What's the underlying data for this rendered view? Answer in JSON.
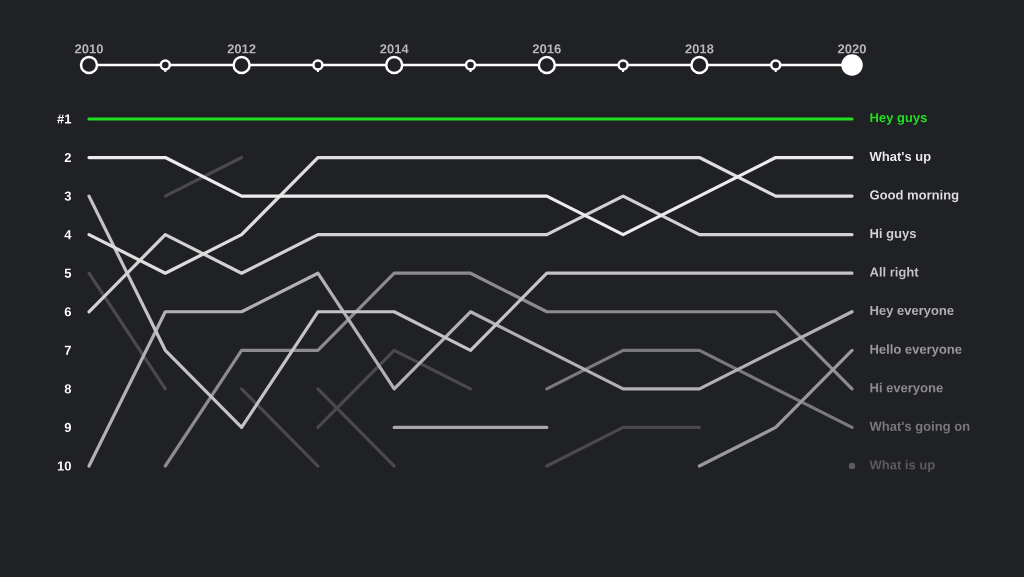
{
  "chart_data": {
    "type": "line",
    "x": [
      2010,
      2011,
      2012,
      2013,
      2014,
      2015,
      2016,
      2017,
      2018,
      2019,
      2020
    ],
    "xlim": [
      2010,
      2020
    ],
    "xticks": [
      {
        "value": 2010,
        "label": "2010"
      },
      {
        "value": 2011,
        "label": null
      },
      {
        "value": 2012,
        "label": "2012"
      },
      {
        "value": 2013,
        "label": null
      },
      {
        "value": 2014,
        "label": "2014"
      },
      {
        "value": 2015,
        "label": null
      },
      {
        "value": 2016,
        "label": "2016"
      },
      {
        "value": 2017,
        "label": null
      },
      {
        "value": 2018,
        "label": "2018"
      },
      {
        "value": 2019,
        "label": null
      },
      {
        "value": 2020,
        "label": "2020"
      }
    ],
    "ylim": [
      10,
      -0.4
    ],
    "yticks": [
      {
        "value": 1,
        "label": "#1"
      },
      2,
      3,
      4,
      5,
      6,
      7,
      8,
      9,
      10
    ],
    "legend": false,
    "series": [
      {
        "color": "#4a4a4e",
        "values": [
          5,
          8,
          null,
          null,
          null,
          null,
          null,
          null,
          null,
          null,
          null
        ]
      },
      {
        "color": "#4a4a4e",
        "values": [
          null,
          3,
          2,
          null,
          null,
          null,
          null,
          null,
          null,
          null,
          null
        ]
      },
      {
        "color": "#4a4a4e",
        "values": [
          null,
          null,
          8,
          10,
          null,
          null,
          null,
          null,
          null,
          null,
          null
        ]
      },
      {
        "color": "#4a4a4e",
        "values": [
          null,
          null,
          null,
          8,
          10,
          null,
          null,
          null,
          null,
          null,
          null
        ]
      },
      {
        "color": "#4a4a4e",
        "values": [
          null,
          null,
          null,
          9,
          7,
          8,
          null,
          null,
          null,
          null,
          null
        ]
      },
      {
        "color": "#4a4a4e",
        "values": [
          null,
          null,
          null,
          null,
          null,
          null,
          10,
          9,
          9,
          null,
          null
        ]
      },
      {
        "color": "#a8a8a8",
        "values": [
          null,
          null,
          null,
          null,
          9,
          9,
          9,
          null,
          null,
          null,
          null
        ]
      },
      {
        "name": "What is up",
        "color": "#5c5c5e",
        "marker": "circle",
        "values": [
          null,
          null,
          null,
          null,
          null,
          null,
          null,
          null,
          null,
          null,
          10
        ]
      },
      {
        "name": "What's going on",
        "color": "#7a7a7c",
        "values": [
          null,
          null,
          null,
          null,
          null,
          null,
          8,
          7,
          7,
          8,
          9
        ]
      },
      {
        "name": "Hi everyone",
        "color": "#8c8c8e",
        "values": [
          null,
          10,
          7,
          7,
          5,
          5,
          6,
          6,
          6,
          6,
          8
        ]
      },
      {
        "name": "Hello everyone",
        "color": "#9a9a9c",
        "values": [
          null,
          null,
          null,
          null,
          null,
          null,
          null,
          null,
          10,
          9,
          7
        ]
      },
      {
        "name": "Hey everyone",
        "color": "#b2b2b2",
        "values": [
          10,
          6,
          6,
          5,
          8,
          6,
          7,
          8,
          8,
          7,
          6
        ]
      },
      {
        "name": "All right",
        "color": "#c4c4c4",
        "values": [
          3,
          7,
          9,
          6,
          6,
          7,
          5,
          5,
          5,
          5,
          5
        ]
      },
      {
        "name": "Hi guys",
        "color": "#d2d2d2",
        "values": [
          6,
          4,
          5,
          4,
          4,
          4,
          4,
          3,
          4,
          4,
          4
        ]
      },
      {
        "name": "Good morning",
        "color": "#dedede",
        "values": [
          4,
          5,
          4,
          2,
          2,
          2,
          2,
          2,
          2,
          3,
          3
        ]
      },
      {
        "name": "What's up",
        "color": "#ececec",
        "values": [
          2,
          2,
          3,
          3,
          3,
          3,
          3,
          4,
          3,
          2,
          2
        ]
      },
      {
        "name": "Hey guys",
        "color": "#1fe01f",
        "values": [
          1,
          1,
          1,
          1,
          1,
          1,
          1,
          1,
          1,
          1,
          1
        ]
      }
    ]
  }
}
